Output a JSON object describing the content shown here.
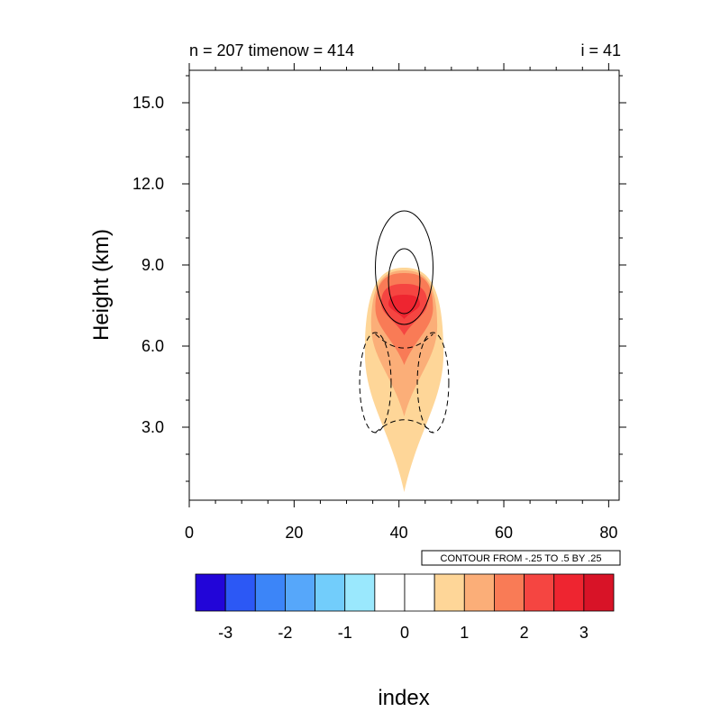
{
  "chart_data": {
    "type": "contour",
    "title_left": "n = 207 timenow = 414",
    "title_right": "i = 41",
    "xlabel": "",
    "ylabel": "Height (km)",
    "xlim": [
      0,
      82
    ],
    "ylim": [
      0.3,
      16.2
    ],
    "x_ticks": [
      0,
      20,
      40,
      60,
      80
    ],
    "y_ticks": [
      3.0,
      6.0,
      9.0,
      12.0,
      15.0
    ],
    "y_tick_labels": [
      "3.0",
      "6.0",
      "9.0",
      "12.0",
      "15.0"
    ],
    "contour_info": "CONTOUR FROM -.25 TO .5 BY .25",
    "colorbar": {
      "label": "index",
      "tick_values": [
        -3,
        -2,
        -1,
        0,
        1,
        2,
        3
      ],
      "tick_labels": [
        "-3",
        "-2",
        "-1",
        "0",
        "1",
        "2",
        "3"
      ],
      "colors": [
        "#2205d8",
        "#2c58f5",
        "#3c85f8",
        "#56a7fa",
        "#72cdfb",
        "#9ae8fd",
        "#ffffff",
        "#ffffff",
        "#fed698",
        "#fbae78",
        "#f97b56",
        "#f54541",
        "#ee2530",
        "#d81327"
      ]
    },
    "filled_field": {
      "center_x": 41,
      "levels": [
        {
          "level": 0.5,
          "color": "#fed698",
          "bottom_km": 0.6,
          "top_km": 8.9,
          "half_width": 7.5
        },
        {
          "level": 1.0,
          "color": "#fbae78",
          "bottom_km": 3.4,
          "top_km": 8.8,
          "half_width": 6.3
        },
        {
          "level": 1.5,
          "color": "#f97b56",
          "bottom_km": 5.3,
          "top_km": 8.7,
          "half_width": 5.5
        },
        {
          "level": 2.0,
          "color": "#f54541",
          "bottom_km": 6.4,
          "top_km": 8.3,
          "half_width": 4.4
        },
        {
          "level": 2.5,
          "color": "#ee2530",
          "bottom_km": 7.0,
          "top_km": 7.9,
          "half_width": 3.0
        }
      ]
    },
    "line_contours": [
      {
        "style": "solid",
        "center_x": 41,
        "center_km": 8.9,
        "half_width": 5.5,
        "half_height": 2.1
      },
      {
        "style": "solid",
        "center_x": 41,
        "center_km": 8.4,
        "half_width": 3.0,
        "half_height": 1.2
      },
      {
        "style": "dashed",
        "center_x": 35.5,
        "center_km": 4.65,
        "half_width": 3.0,
        "half_height": 1.85
      },
      {
        "style": "dashed",
        "center_x": 46.5,
        "center_km": 4.65,
        "half_width": 3.0,
        "half_height": 1.85
      },
      {
        "style": "dashed-arc",
        "center_x": 41,
        "peak_km": 3.3,
        "half_width": 5.5,
        "drop_km": 0.5
      },
      {
        "style": "dashed-arc-top",
        "center_x": 41,
        "peak_km": 5.9,
        "half_width": 5.5,
        "rise_km": 0.55
      }
    ]
  }
}
